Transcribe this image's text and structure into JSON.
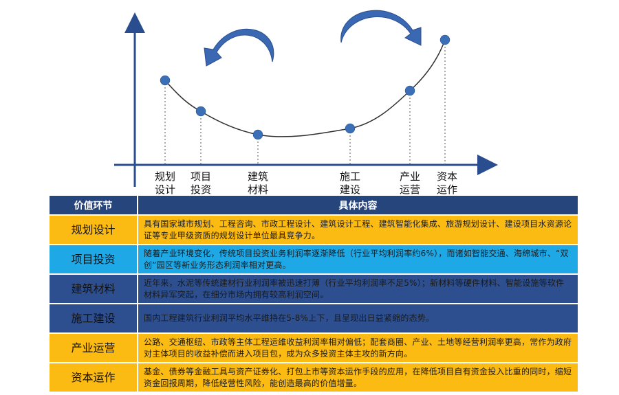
{
  "diagram": {
    "stages": [
      {
        "line1": "规划",
        "line2": "设计"
      },
      {
        "line1": "项目",
        "line2": "投资"
      },
      {
        "line1": "建筑",
        "line2": "材料"
      },
      {
        "line1": "施工",
        "line2": "建设"
      },
      {
        "line1": "产业",
        "line2": "运营"
      },
      {
        "line1": "资本",
        "line2": "运作"
      }
    ],
    "colors": {
      "axis": "#2a4d8f",
      "point": "#3b6fb6",
      "arrow": "#3a68b2",
      "dash": "#555555"
    }
  },
  "table": {
    "header_stage": "价值环节",
    "header_content": "具体内容",
    "rows": [
      {
        "stage": "规划设计",
        "content": "具有国家城市规划、工程咨询、市政工程设计、建筑设计工程、建筑智能化集成、旅游规划设计、建设项目水资源论证等专业甲级资质的规划设计单位最具竞争力。",
        "color": "yellow"
      },
      {
        "stage": "项目投资",
        "content": "随着产业环境变化，传统项目投资业务利润率逐渐降低（行业平均利润率约6%），而诸如智能交通、海绵城市、“双创”园区等新业务形态利润率相对更高。",
        "color": "cyan"
      },
      {
        "stage": "建筑材料",
        "content": "近年来，水泥等传统建材行业利润率被迅速打薄（行业平均利润率不足5%）；新材料等硬件材料、智能设施等软件材料异军突起，在细分市场内拥有较高利润空间。",
        "color": "navy"
      },
      {
        "stage": "施工建设",
        "content": "国内工程建筑行业利润平均水平维持在5-8%上下，且呈现出日益紧缩的态势。",
        "color": "navy"
      },
      {
        "stage": "产业运营",
        "content": "公路、交通枢纽、市政等主体工程运维收益利润率相对偏低；配套商圈、产业、土地等经营利润率更高，常作为政府对主体项目的收益补偿而进入项目包，成为众多投资主体主攻的新方向。",
        "color": "yellow"
      },
      {
        "stage": "资本运作",
        "content": "基金、债券等金融工具与资产证券化、打包上市等资本运作手段的应用，在降低项目自有资金投入比重的同时，缩短资金回报周期，降低经营性风险，能创造最高的价值增量。",
        "color": "yellow"
      }
    ]
  }
}
